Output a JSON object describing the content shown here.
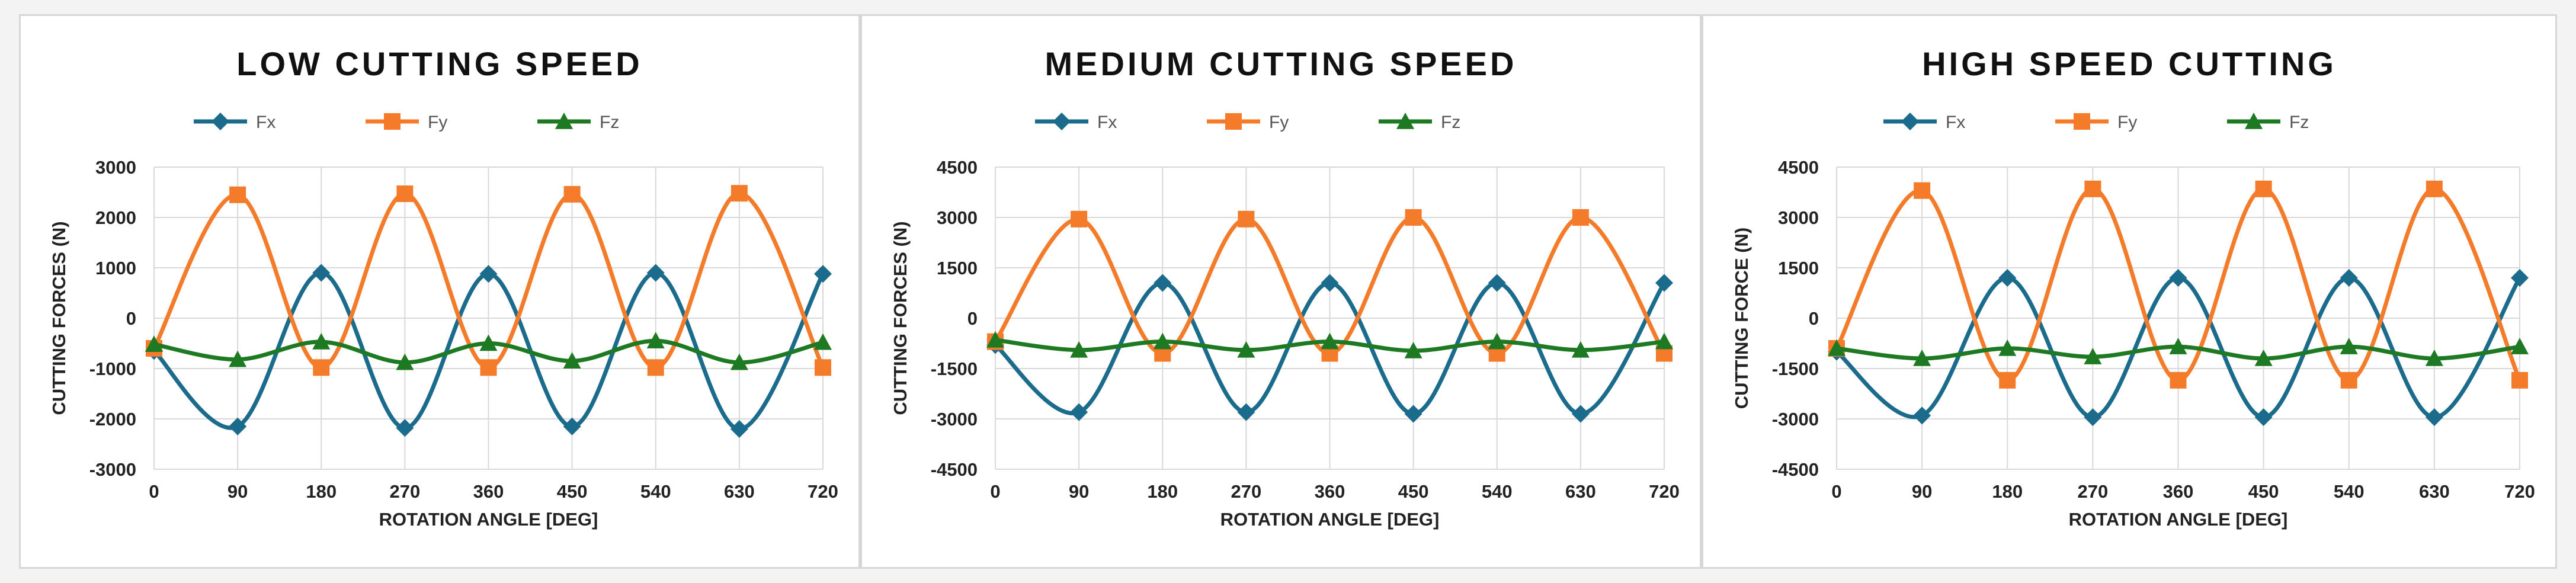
{
  "colors": {
    "fx": "#1a6b8c",
    "fy": "#f47b2a",
    "fz": "#1e7a22",
    "grid": "#d9d9d9",
    "panel_border": "#d6d6d6"
  },
  "chart_data": [
    {
      "type": "line",
      "title": "LOW CUTTING SPEED",
      "xlabel": "ROTATION ANGLE [DEG]",
      "ylabel": "CUTTING FORCES (N)",
      "x": [
        0,
        90,
        180,
        270,
        360,
        450,
        540,
        630,
        720
      ],
      "xticks": [
        "0",
        "90",
        "180",
        "270",
        "360",
        "450",
        "540",
        "630",
        "720"
      ],
      "ylim": [
        -3000,
        3000
      ],
      "yticks": [
        "3000",
        "2000",
        "1000",
        "0",
        "-1000",
        "-2000",
        "-3000"
      ],
      "legend": [
        "Fx",
        "Fy",
        "Fz"
      ],
      "grid": true,
      "series": [
        {
          "name": "Fx",
          "values": [
            -650,
            -2150,
            900,
            -2180,
            880,
            -2150,
            900,
            -2200,
            880
          ]
        },
        {
          "name": "Fy",
          "values": [
            -600,
            2450,
            -980,
            2470,
            -980,
            2460,
            -980,
            2480,
            -980
          ]
        },
        {
          "name": "Fz",
          "values": [
            -520,
            -820,
            -470,
            -880,
            -500,
            -850,
            -450,
            -880,
            -480
          ]
        }
      ]
    },
    {
      "type": "line",
      "title": "MEDIUM CUTTING SPEED",
      "xlabel": "ROTATION ANGLE [DEG]",
      "ylabel": "CUTTING FORCES (N)",
      "x": [
        0,
        90,
        180,
        270,
        360,
        450,
        540,
        630,
        720
      ],
      "xticks": [
        "0",
        "90",
        "180",
        "270",
        "360",
        "450",
        "540",
        "630",
        "720"
      ],
      "ylim": [
        -4500,
        4500
      ],
      "yticks": [
        "4500",
        "3000",
        "1500",
        "0",
        "-1500",
        "-3000",
        "-4500"
      ],
      "legend": [
        "Fx",
        "Fy",
        "Fz"
      ],
      "grid": true,
      "series": [
        {
          "name": "Fx",
          "values": [
            -800,
            -2800,
            1050,
            -2800,
            1050,
            -2850,
            1050,
            -2850,
            1050
          ]
        },
        {
          "name": "Fy",
          "values": [
            -700,
            2950,
            -1050,
            2950,
            -1050,
            3000,
            -1050,
            3000,
            -1050
          ]
        },
        {
          "name": "Fz",
          "values": [
            -650,
            -950,
            -700,
            -950,
            -700,
            -970,
            -700,
            -950,
            -700
          ]
        }
      ]
    },
    {
      "type": "line",
      "title": "HIGH SPEED CUTTING",
      "xlabel": "ROTATION ANGLE [DEG]",
      "ylabel": "CUTTING FORCE (N)",
      "x": [
        0,
        90,
        180,
        270,
        360,
        450,
        540,
        630,
        720
      ],
      "xticks": [
        "0",
        "90",
        "180",
        "270",
        "360",
        "450",
        "540",
        "630",
        "720"
      ],
      "ylim": [
        -4500,
        4500
      ],
      "yticks": [
        "4500",
        "3000",
        "1500",
        "0",
        "-1500",
        "-3000",
        "-4500"
      ],
      "legend": [
        "Fx",
        "Fy",
        "Fz"
      ],
      "grid": true,
      "series": [
        {
          "name": "Fx",
          "values": [
            -1000,
            -2900,
            1200,
            -2950,
            1200,
            -2950,
            1200,
            -2950,
            1200
          ]
        },
        {
          "name": "Fy",
          "values": [
            -900,
            3800,
            -1850,
            3850,
            -1850,
            3850,
            -1850,
            3850,
            -1850
          ]
        },
        {
          "name": "Fz",
          "values": [
            -900,
            -1200,
            -900,
            -1150,
            -850,
            -1200,
            -850,
            -1200,
            -850
          ]
        }
      ]
    }
  ]
}
